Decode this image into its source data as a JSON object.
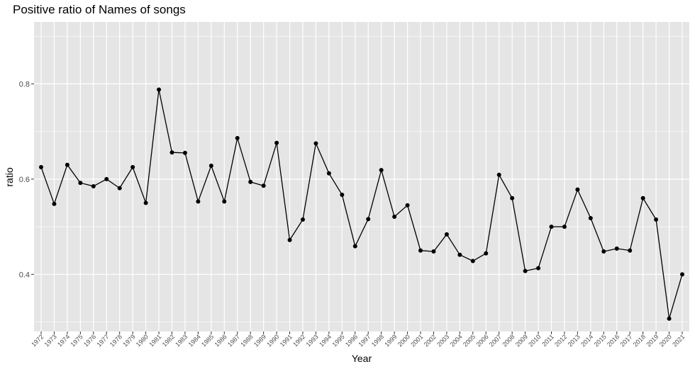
{
  "chart_data": {
    "type": "line",
    "title": "Positive ratio of Names of songs",
    "xlabel": "Year",
    "ylabel": "ratio",
    "ylim": [
      0.28,
      0.93
    ],
    "yticks": [
      0.4,
      0.6,
      0.8
    ],
    "grid": true,
    "colors": {
      "panel": "#e5e5e5",
      "grid": "#ffffff",
      "line": "#000000"
    },
    "x": [
      "1972",
      "1973",
      "1974",
      "1975",
      "1976",
      "1977",
      "1978",
      "1979",
      "1980",
      "1981",
      "1982",
      "1983",
      "1984",
      "1985",
      "1986",
      "1987",
      "1988",
      "1989",
      "1990",
      "1991",
      "1992",
      "1993",
      "1994",
      "1995",
      "1996",
      "1997",
      "1998",
      "1999",
      "2000",
      "2001",
      "2002",
      "2003",
      "2004",
      "2005",
      "2006",
      "2007",
      "2008",
      "2009",
      "2010",
      "2011",
      "2012",
      "2013",
      "2014",
      "2015",
      "2016",
      "2017",
      "2018",
      "2019",
      "2020",
      "2021"
    ],
    "values": [
      0.625,
      0.548,
      0.63,
      0.592,
      0.585,
      0.6,
      0.581,
      0.625,
      0.55,
      0.788,
      0.656,
      0.655,
      0.553,
      0.628,
      0.553,
      0.686,
      0.594,
      0.586,
      0.676,
      0.472,
      0.515,
      0.675,
      0.612,
      0.567,
      0.459,
      0.516,
      0.619,
      0.521,
      0.545,
      0.45,
      0.448,
      0.484,
      0.441,
      0.428,
      0.444,
      0.609,
      0.56,
      0.407,
      0.413,
      0.5,
      0.5,
      0.578,
      0.518,
      0.448,
      0.454,
      0.45,
      0.56,
      0.515,
      0.307,
      0.4
    ]
  }
}
